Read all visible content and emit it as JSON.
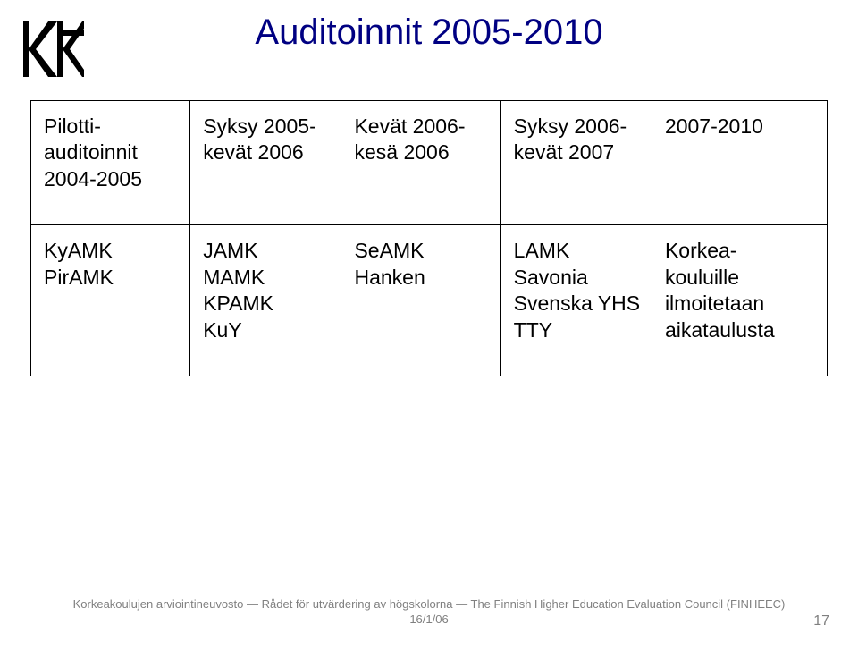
{
  "title": "Auditoinnit 2005-2010",
  "table": {
    "border_color": "#000000",
    "text_color": "#000000",
    "cell_fontsize": 23,
    "rows": [
      [
        "Pilotti-\nauditoinnit\n2004-2005",
        "Syksy 2005-\nkevät 2006",
        "Kevät 2006-\nkesä 2006",
        "Syksy 2006-\nkevät 2007",
        "2007-2010"
      ],
      [
        "KyAMK\nPirAMK",
        "JAMK\nMAMK\nKPAMK\nKuY",
        "SeAMK\nHanken",
        "LAMK\nSavonia\nSvenska YHS\nTTY",
        "Korkea-\nkouluille\nilmoitetaan\naikataulusta"
      ]
    ]
  },
  "footer": {
    "line1": "Korkeakoulujen arviointineuvosto — Rådet för utvärdering av högskolorna — The Finnish Higher Education Evaluation Council (FINHEEC)",
    "line2": "16/1/06"
  },
  "page_number": "17",
  "colors": {
    "title": "#000082",
    "footer": "#808080",
    "background": "#ffffff"
  }
}
